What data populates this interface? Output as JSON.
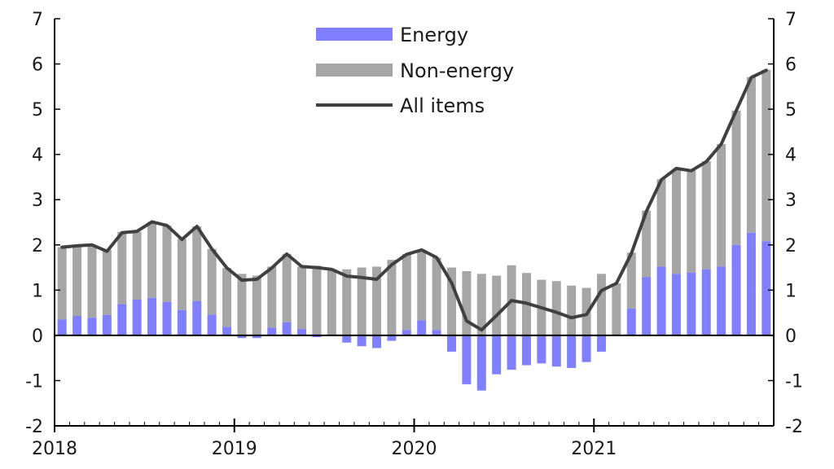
{
  "chart_data": {
    "type": "bar",
    "title": "",
    "xlabel": "",
    "ylabel": "",
    "ylim": [
      -2,
      7
    ],
    "yticks": [
      "-2",
      "-1",
      "0",
      "1",
      "2",
      "3",
      "4",
      "5",
      "6",
      "7"
    ],
    "x_labels": [
      "2018",
      "2019",
      "2020",
      "2021"
    ],
    "legend": [
      {
        "name": "Energy",
        "kind": "bar"
      },
      {
        "name": "Non-energy",
        "kind": "bar"
      },
      {
        "name": "All items",
        "kind": "line"
      }
    ],
    "colors": {
      "energy": "#7f7fff",
      "non_energy": "#a6a6a6",
      "all_items": "#404040",
      "axis": "#000000"
    },
    "months": 48,
    "series": [
      {
        "name": "Energy",
        "values": [
          0.35,
          0.43,
          0.39,
          0.45,
          0.69,
          0.79,
          0.83,
          0.74,
          0.56,
          0.76,
          0.46,
          0.19,
          -0.06,
          -0.06,
          0.17,
          0.29,
          0.14,
          -0.04,
          0.0,
          -0.16,
          -0.24,
          -0.28,
          -0.12,
          0.12,
          0.33,
          0.12,
          -0.36,
          -1.08,
          -1.22,
          -0.86,
          -0.76,
          -0.66,
          -0.62,
          -0.69,
          -0.72,
          -0.59,
          -0.36,
          0.0,
          0.59,
          1.29,
          1.52,
          1.36,
          1.39,
          1.46,
          1.52,
          2.0,
          2.27,
          2.08
        ]
      },
      {
        "name": "Non-energy",
        "values": [
          1.6,
          1.54,
          1.61,
          1.44,
          1.6,
          1.5,
          1.68,
          1.69,
          1.57,
          1.65,
          1.45,
          1.3,
          1.36,
          1.32,
          1.35,
          1.51,
          1.38,
          1.54,
          1.46,
          1.46,
          1.5,
          1.52,
          1.67,
          1.68,
          1.56,
          1.6,
          1.5,
          1.42,
          1.36,
          1.32,
          1.55,
          1.38,
          1.23,
          1.2,
          1.1,
          1.05,
          1.36,
          1.15,
          1.24,
          1.47,
          1.93,
          2.32,
          2.26,
          2.39,
          2.71,
          2.97,
          3.44,
          3.79
        ]
      },
      {
        "name": "All items",
        "values": [
          1.95,
          1.98,
          2.0,
          1.86,
          2.27,
          2.3,
          2.51,
          2.43,
          2.12,
          2.41,
          1.91,
          1.49,
          1.22,
          1.24,
          1.49,
          1.8,
          1.52,
          1.5,
          1.46,
          1.31,
          1.28,
          1.24,
          1.56,
          1.79,
          1.89,
          1.72,
          1.16,
          0.32,
          0.12,
          0.44,
          0.77,
          0.71,
          0.61,
          0.51,
          0.39,
          0.46,
          0.99,
          1.15,
          1.81,
          2.74,
          3.44,
          3.69,
          3.64,
          3.84,
          4.23,
          4.97,
          5.7,
          5.86
        ]
      }
    ]
  }
}
